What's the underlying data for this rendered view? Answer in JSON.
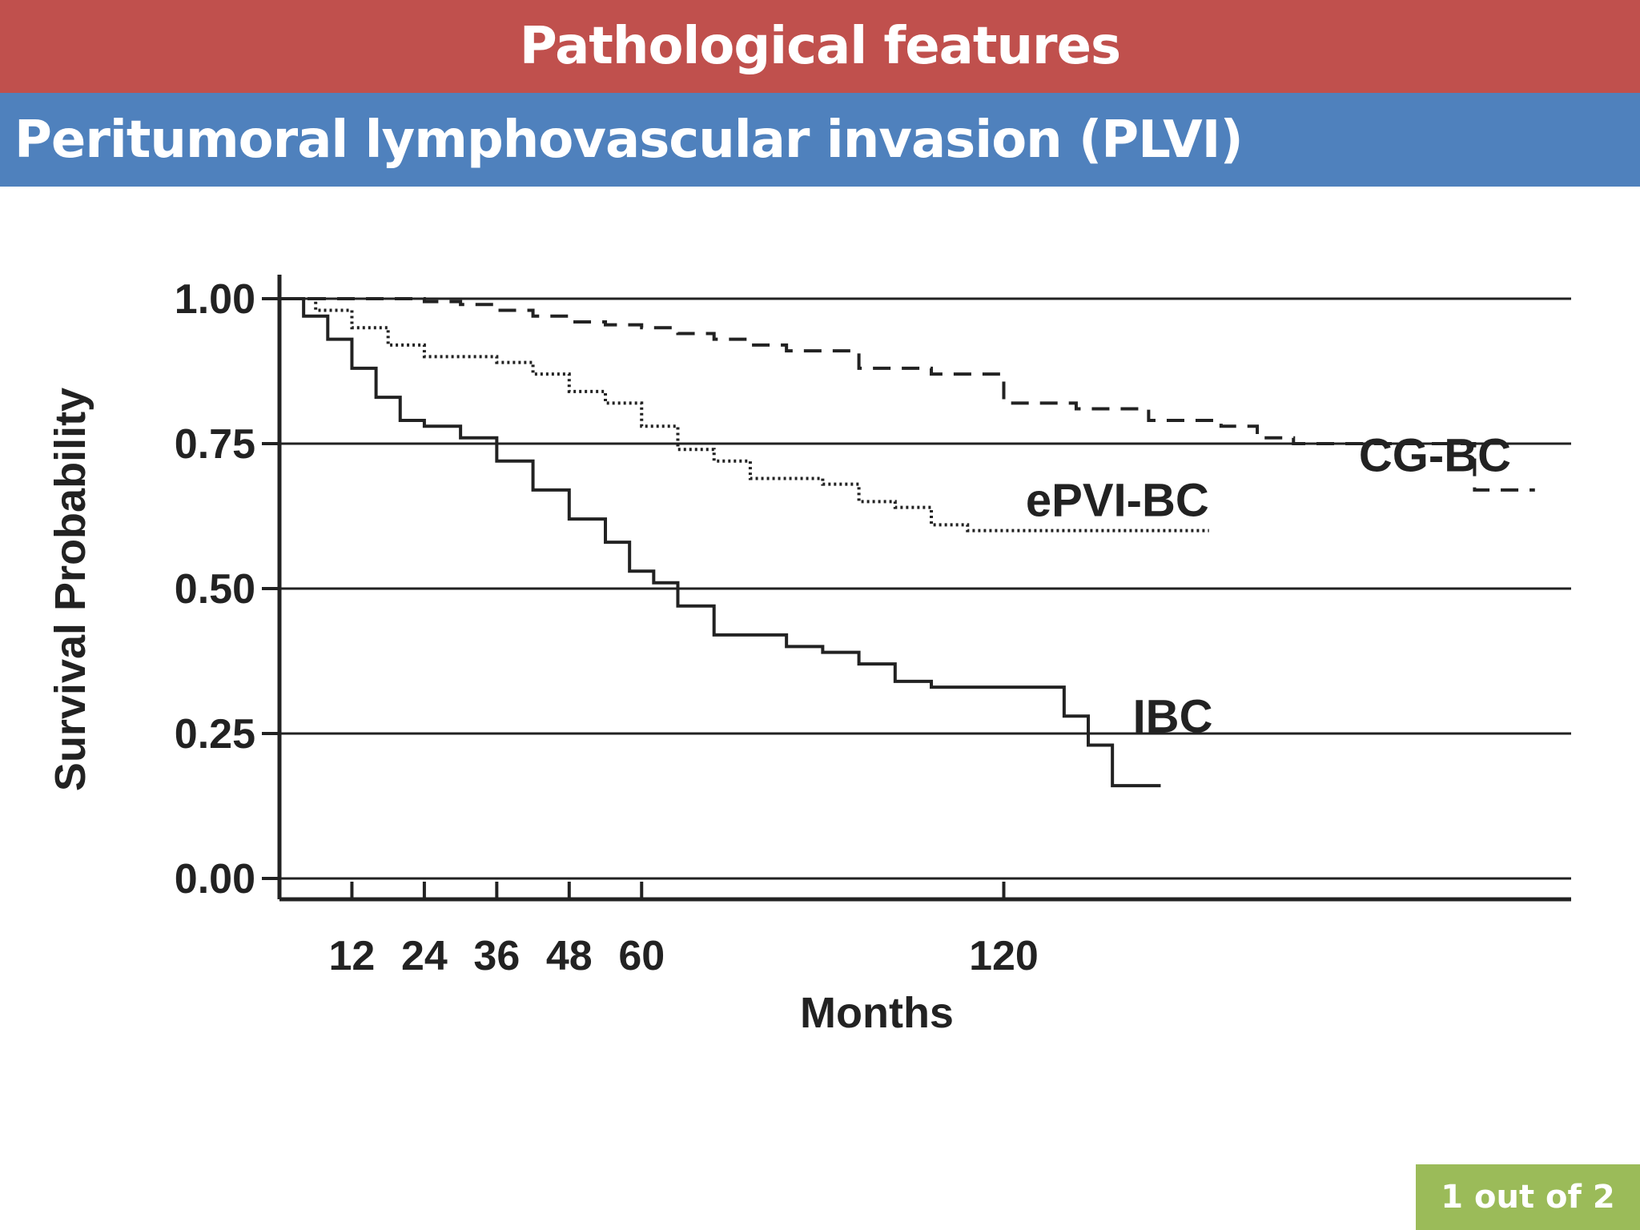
{
  "header": {
    "title": "Pathological features",
    "subtitle": "Peritumoral lymphovascular invasion (PLVI)"
  },
  "footer": {
    "page_indicator": "1 out of  2"
  },
  "colors": {
    "title_bar": "#c0504d",
    "subtitle_bar": "#4f81bd",
    "page_badge": "#9bbb59",
    "ink": "#222222"
  },
  "chart_data": {
    "type": "line",
    "title": "",
    "xlabel": "Months",
    "ylabel": "Survival Probability",
    "xlim": [
      0,
      214
    ],
    "ylim": [
      0,
      1
    ],
    "x_ticks": [
      12,
      24,
      36,
      48,
      60,
      120
    ],
    "y_ticks": [
      0,
      0.25,
      0.5,
      0.75,
      1
    ],
    "y_tick_labels": [
      "0.00",
      "0.25",
      "0.50",
      "0.75",
      "1.00"
    ],
    "grid": "horizontal",
    "step": true,
    "series": [
      {
        "name": "CG-BC",
        "style": "dashed",
        "x": [
          0,
          12,
          18,
          24,
          30,
          36,
          42,
          48,
          54,
          60,
          66,
          72,
          78,
          84,
          96,
          108,
          114,
          120,
          126,
          132,
          138,
          144,
          150,
          156,
          162,
          168,
          174,
          180,
          186,
          192,
          198,
          208
        ],
        "y": [
          1,
          1,
          1,
          0.995,
          0.99,
          0.98,
          0.97,
          0.96,
          0.955,
          0.95,
          0.94,
          0.93,
          0.92,
          0.91,
          0.88,
          0.87,
          0.87,
          0.82,
          0.82,
          0.81,
          0.81,
          0.79,
          0.79,
          0.78,
          0.76,
          0.75,
          0.75,
          0.75,
          0.75,
          0.75,
          0.67,
          0.67
        ]
      },
      {
        "name": "ePVI-BC",
        "style": "dotted",
        "x": [
          0,
          6,
          12,
          18,
          24,
          30,
          36,
          42,
          48,
          54,
          60,
          66,
          72,
          78,
          84,
          90,
          96,
          102,
          108,
          114,
          120,
          126,
          132,
          138,
          144,
          150,
          154
        ],
        "y": [
          1,
          0.98,
          0.95,
          0.92,
          0.9,
          0.9,
          0.89,
          0.87,
          0.84,
          0.82,
          0.78,
          0.74,
          0.72,
          0.69,
          0.69,
          0.68,
          0.65,
          0.64,
          0.61,
          0.6,
          0.6,
          0.6,
          0.6,
          0.6,
          0.6,
          0.6,
          0.6
        ]
      },
      {
        "name": "IBC",
        "style": "solid",
        "x": [
          0,
          4,
          8,
          12,
          16,
          20,
          24,
          30,
          36,
          42,
          48,
          54,
          58,
          62,
          66,
          72,
          78,
          84,
          90,
          96,
          102,
          108,
          114,
          120,
          126,
          130,
          134,
          138,
          142,
          146
        ],
        "y": [
          1,
          0.97,
          0.93,
          0.88,
          0.83,
          0.79,
          0.78,
          0.76,
          0.72,
          0.67,
          0.62,
          0.58,
          0.53,
          0.51,
          0.47,
          0.42,
          0.42,
          0.4,
          0.39,
          0.37,
          0.34,
          0.33,
          0.33,
          0.33,
          0.33,
          0.28,
          0.23,
          0.16,
          0.16,
          0.16
        ]
      }
    ]
  }
}
